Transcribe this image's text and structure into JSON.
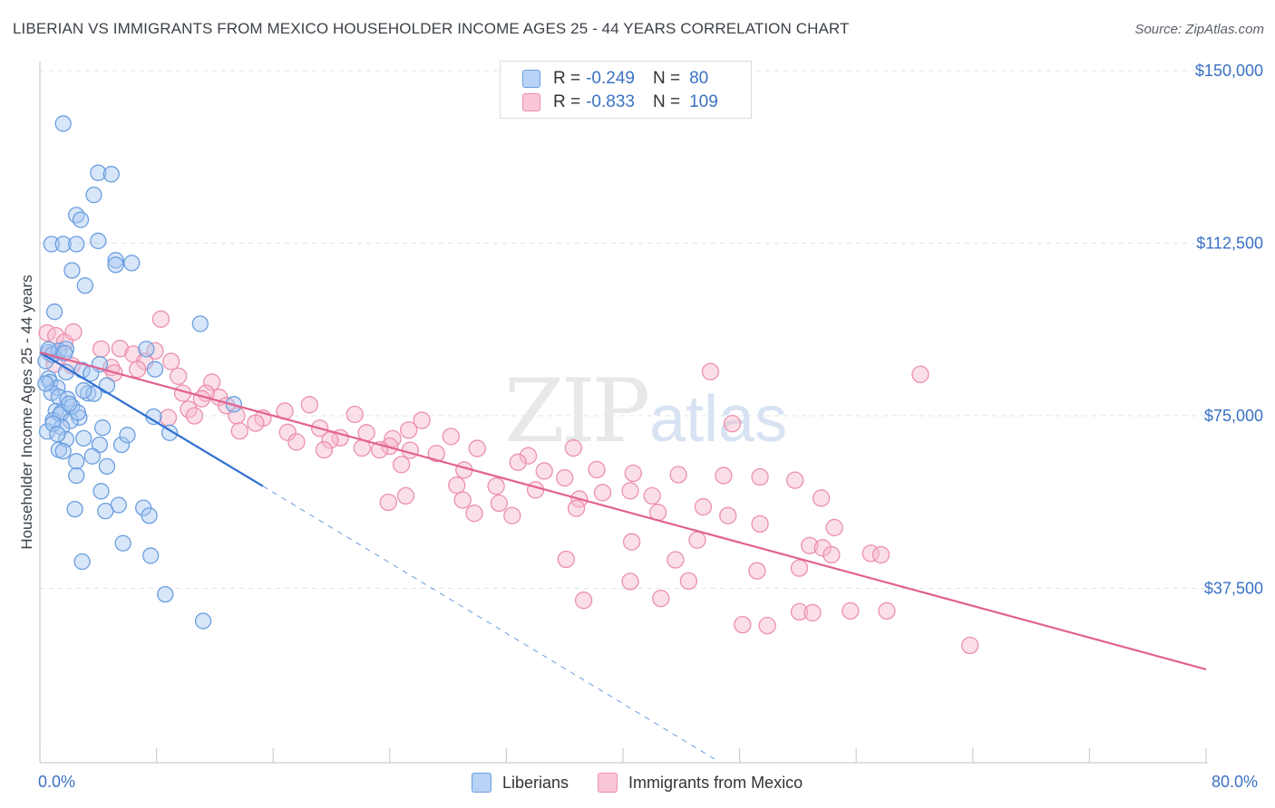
{
  "title": "LIBERIAN VS IMMIGRANTS FROM MEXICO HOUSEHOLDER INCOME AGES 25 - 44 YEARS CORRELATION CHART",
  "source": "Source: ZipAtlas.com",
  "watermark": {
    "zip": "ZIP",
    "atlas": "atlas"
  },
  "colors": {
    "blue_fill": "#a9c8f2",
    "blue_stroke": "#6a9ee0",
    "blue_line": "#2e6fd0",
    "pink_fill": "#f6b8cc",
    "pink_stroke": "#ec8fae",
    "pink_line": "#e2628f",
    "axis_text": "#3a72c4",
    "grid": "#dfe3e8"
  },
  "legend": {
    "rows": [
      {
        "r_label": "R =",
        "r_value": "-0.249",
        "n_label": "N =",
        "n_value": "80"
      },
      {
        "r_label": "R =",
        "r_value": "-0.833",
        "n_label": "N =",
        "n_value": "109"
      }
    ]
  },
  "bottom_legend": {
    "series1": "Liberians",
    "series2": "Immigrants from Mexico"
  },
  "x_tick_labels": {
    "min": "0.0%",
    "max": "80.0%"
  },
  "chart_data": {
    "type": "scatter",
    "title": "LIBERIAN VS IMMIGRANTS FROM MEXICO HOUSEHOLDER INCOME AGES 25 - 44 YEARS CORRELATION CHART",
    "xlabel": "",
    "ylabel": "Householder Income Ages 25 - 44 years",
    "xlim": [
      0,
      80
    ],
    "ylim": [
      0,
      152000
    ],
    "y_ticks": [
      37500,
      75000,
      112500,
      150000
    ],
    "y_tick_labels": [
      "$37,500",
      "$75,000",
      "$112,500",
      "$150,000"
    ],
    "grid": true,
    "legend_position": "top-center",
    "series": [
      {
        "name": "Liberians",
        "color": "#a9c8f2",
        "trend": {
          "x": [
            0,
            15.3
          ],
          "y": [
            88800,
            59700
          ],
          "dashed_to_x": 46.5,
          "dashed_to_y": 0
        },
        "points": [
          [
            1.6,
            138500
          ],
          [
            4.0,
            127800
          ],
          [
            4.9,
            127500
          ],
          [
            3.7,
            123000
          ],
          [
            2.5,
            118600
          ],
          [
            2.8,
            117600
          ],
          [
            0.8,
            112300
          ],
          [
            1.6,
            112300
          ],
          [
            2.5,
            112300
          ],
          [
            4.0,
            113000
          ],
          [
            5.2,
            108800
          ],
          [
            5.2,
            107800
          ],
          [
            6.3,
            108200
          ],
          [
            2.2,
            106600
          ],
          [
            3.1,
            103300
          ],
          [
            1.0,
            97600
          ],
          [
            11.0,
            95000
          ],
          [
            7.3,
            89500
          ],
          [
            0.6,
            88800
          ],
          [
            0.9,
            88300
          ],
          [
            1.3,
            89100
          ],
          [
            1.8,
            89500
          ],
          [
            0.4,
            86900
          ],
          [
            4.1,
            86200
          ],
          [
            7.9,
            85100
          ],
          [
            2.9,
            84900
          ],
          [
            1.8,
            84500
          ],
          [
            0.6,
            83100
          ],
          [
            0.7,
            82300
          ],
          [
            3.5,
            84200
          ],
          [
            4.6,
            81600
          ],
          [
            1.2,
            81100
          ],
          [
            0.8,
            80000
          ],
          [
            3.3,
            79900
          ],
          [
            1.3,
            79100
          ],
          [
            1.9,
            78600
          ],
          [
            3.7,
            79800
          ],
          [
            13.3,
            77500
          ],
          [
            1.1,
            76000
          ],
          [
            1.5,
            75800
          ],
          [
            0.9,
            74000
          ],
          [
            1.4,
            75300
          ],
          [
            2.7,
            74600
          ],
          [
            2.1,
            73900
          ],
          [
            7.8,
            74800
          ],
          [
            4.3,
            72400
          ],
          [
            1.5,
            72500
          ],
          [
            0.5,
            71600
          ],
          [
            8.9,
            71300
          ],
          [
            1.8,
            69900
          ],
          [
            3.0,
            70100
          ],
          [
            4.1,
            68700
          ],
          [
            5.6,
            68700
          ],
          [
            1.3,
            67600
          ],
          [
            1.6,
            67300
          ],
          [
            2.5,
            65100
          ],
          [
            4.6,
            64000
          ],
          [
            2.5,
            62000
          ],
          [
            4.2,
            58600
          ],
          [
            5.4,
            55600
          ],
          [
            7.1,
            55000
          ],
          [
            4.5,
            54300
          ],
          [
            2.4,
            54700
          ],
          [
            7.5,
            53300
          ],
          [
            5.7,
            47300
          ],
          [
            7.6,
            44600
          ],
          [
            2.9,
            43300
          ],
          [
            8.6,
            36200
          ],
          [
            11.2,
            30400
          ],
          [
            1.7,
            88600
          ],
          [
            0.6,
            89400
          ],
          [
            0.4,
            82000
          ],
          [
            3.0,
            80500
          ],
          [
            2.2,
            77000
          ],
          [
            2.6,
            75700
          ],
          [
            0.9,
            73300
          ],
          [
            3.6,
            66200
          ],
          [
            6.0,
            70800
          ],
          [
            1.2,
            71000
          ],
          [
            2.0,
            77600
          ]
        ]
      },
      {
        "name": "Immigrants from Mexico",
        "color": "#f6b8cc",
        "trend": {
          "x": [
            0,
            80
          ],
          "y": [
            88800,
            19900
          ]
        },
        "points": [
          [
            0.5,
            93000
          ],
          [
            1.1,
            92400
          ],
          [
            1.7,
            91000
          ],
          [
            2.3,
            93200
          ],
          [
            8.3,
            96000
          ],
          [
            5.5,
            89600
          ],
          [
            4.2,
            89500
          ],
          [
            6.4,
            88400
          ],
          [
            7.9,
            89100
          ],
          [
            7.2,
            86800
          ],
          [
            9.0,
            86800
          ],
          [
            1.0,
            86200
          ],
          [
            2.2,
            85900
          ],
          [
            4.9,
            85500
          ],
          [
            6.7,
            85100
          ],
          [
            5.1,
            84300
          ],
          [
            9.5,
            83600
          ],
          [
            11.8,
            82300
          ],
          [
            9.8,
            79900
          ],
          [
            12.3,
            79000
          ],
          [
            11.4,
            79900
          ],
          [
            11.1,
            78700
          ],
          [
            12.8,
            77200
          ],
          [
            18.5,
            77400
          ],
          [
            16.8,
            76000
          ],
          [
            10.2,
            76400
          ],
          [
            21.6,
            75300
          ],
          [
            13.5,
            75000
          ],
          [
            15.3,
            74500
          ],
          [
            14.8,
            73400
          ],
          [
            19.2,
            72300
          ],
          [
            26.2,
            74000
          ],
          [
            10.6,
            75000
          ],
          [
            8.8,
            74600
          ],
          [
            13.7,
            71700
          ],
          [
            17.0,
            71400
          ],
          [
            22.4,
            71300
          ],
          [
            24.2,
            70000
          ],
          [
            25.3,
            71900
          ],
          [
            28.2,
            70500
          ],
          [
            20.6,
            70200
          ],
          [
            19.9,
            69700
          ],
          [
            17.6,
            69300
          ],
          [
            22.1,
            68000
          ],
          [
            24.0,
            68400
          ],
          [
            19.5,
            67600
          ],
          [
            23.3,
            67600
          ],
          [
            25.4,
            67500
          ],
          [
            27.2,
            66800
          ],
          [
            30.0,
            67900
          ],
          [
            33.5,
            66300
          ],
          [
            36.6,
            68000
          ],
          [
            32.8,
            64900
          ],
          [
            24.8,
            64400
          ],
          [
            29.1,
            63200
          ],
          [
            34.6,
            63000
          ],
          [
            38.2,
            63300
          ],
          [
            40.7,
            62500
          ],
          [
            43.8,
            62200
          ],
          [
            46.9,
            62000
          ],
          [
            49.4,
            61700
          ],
          [
            51.8,
            61000
          ],
          [
            36.0,
            61500
          ],
          [
            28.6,
            59900
          ],
          [
            31.3,
            59700
          ],
          [
            34.0,
            58900
          ],
          [
            38.6,
            58300
          ],
          [
            40.5,
            58700
          ],
          [
            42.0,
            57600
          ],
          [
            37.0,
            56900
          ],
          [
            25.1,
            57600
          ],
          [
            23.9,
            56200
          ],
          [
            29.0,
            56700
          ],
          [
            31.5,
            56000
          ],
          [
            36.8,
            54900
          ],
          [
            42.4,
            54000
          ],
          [
            45.5,
            55200
          ],
          [
            47.2,
            53300
          ],
          [
            53.6,
            57100
          ],
          [
            29.8,
            53800
          ],
          [
            32.4,
            53300
          ],
          [
            49.4,
            51500
          ],
          [
            54.5,
            50700
          ],
          [
            40.6,
            47600
          ],
          [
            45.1,
            48000
          ],
          [
            52.8,
            46800
          ],
          [
            53.7,
            46300
          ],
          [
            57.0,
            45100
          ],
          [
            54.3,
            44800
          ],
          [
            57.7,
            44800
          ],
          [
            36.1,
            43800
          ],
          [
            43.6,
            43700
          ],
          [
            49.2,
            41300
          ],
          [
            52.1,
            41900
          ],
          [
            40.5,
            39000
          ],
          [
            44.5,
            39100
          ],
          [
            37.3,
            34900
          ],
          [
            42.6,
            35300
          ],
          [
            48.2,
            29600
          ],
          [
            49.9,
            29400
          ],
          [
            52.1,
            32400
          ],
          [
            53.0,
            32200
          ],
          [
            55.6,
            32600
          ],
          [
            58.1,
            32600
          ],
          [
            63.8,
            25100
          ],
          [
            60.4,
            84000
          ],
          [
            46.0,
            84600
          ],
          [
            47.5,
            73300
          ],
          [
            0.8,
            88300
          ]
        ]
      }
    ]
  }
}
